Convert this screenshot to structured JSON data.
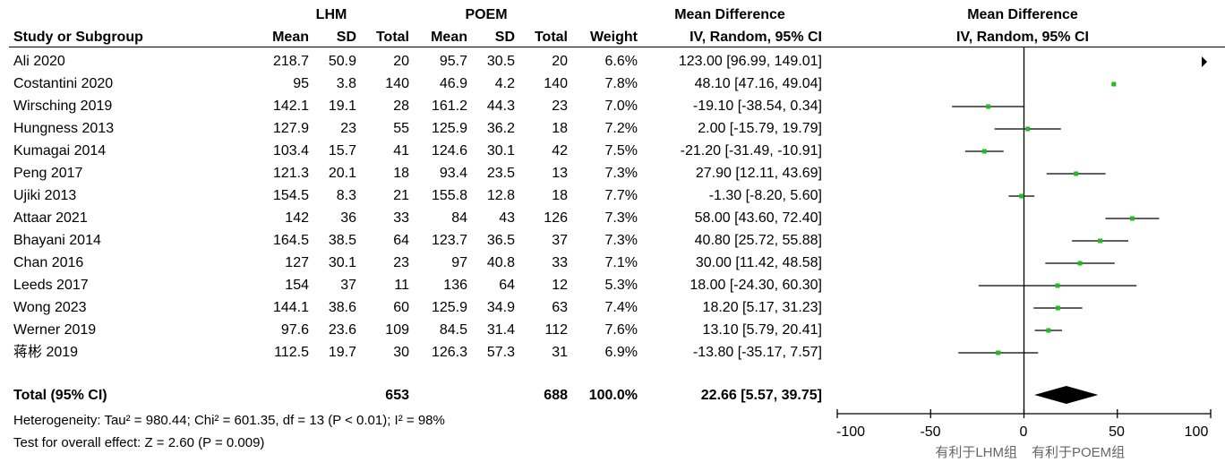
{
  "header": {
    "group1": "LHM",
    "group2": "POEM",
    "effect": "Mean Difference",
    "plot_title": "Mean Difference",
    "col_study": "Study or Subgroup",
    "col_mean1": "Mean",
    "col_sd1": "SD",
    "col_total1": "Total",
    "col_mean2": "Mean",
    "col_sd2": "SD",
    "col_total2": "Total",
    "col_weight": "Weight",
    "col_ci": "IV, Random, 95% CI",
    "plot_subtitle": "IV, Random, 95% CI"
  },
  "studies": [
    {
      "study": "Ali 2020",
      "mean1": "218.7",
      "sd1": "50.9",
      "total1": "20",
      "mean2": "95.7",
      "sd2": "30.5",
      "total2": "20",
      "weight": "6.6%",
      "ci": "123.00 [96.99, 149.01]"
    },
    {
      "study": "Costantini 2020",
      "mean1": "95",
      "sd1": "3.8",
      "total1": "140",
      "mean2": "46.9",
      "sd2": "4.2",
      "total2": "140",
      "weight": "7.8%",
      "ci": "48.10 [47.16, 49.04]"
    },
    {
      "study": "Wirsching 2019",
      "mean1": "142.1",
      "sd1": "19.1",
      "total1": "28",
      "mean2": "161.2",
      "sd2": "44.3",
      "total2": "23",
      "weight": "7.0%",
      "ci": "-19.10 [-38.54, 0.34]"
    },
    {
      "study": "Hungness 2013",
      "mean1": "127.9",
      "sd1": "23",
      "total1": "55",
      "mean2": "125.9",
      "sd2": "36.2",
      "total2": "18",
      "weight": "7.2%",
      "ci": "2.00 [-15.79, 19.79]"
    },
    {
      "study": "Kumagai 2014",
      "mean1": "103.4",
      "sd1": "15.7",
      "total1": "41",
      "mean2": "124.6",
      "sd2": "30.1",
      "total2": "42",
      "weight": "7.5%",
      "ci": "-21.20 [-31.49, -10.91]"
    },
    {
      "study": "Peng 2017",
      "mean1": "121.3",
      "sd1": "20.1",
      "total1": "18",
      "mean2": "93.4",
      "sd2": "23.5",
      "total2": "13",
      "weight": "7.3%",
      "ci": "27.90 [12.11, 43.69]"
    },
    {
      "study": "Ujiki 2013",
      "mean1": "154.5",
      "sd1": "8.3",
      "total1": "21",
      "mean2": "155.8",
      "sd2": "12.8",
      "total2": "18",
      "weight": "7.7%",
      "ci": "-1.30 [-8.20, 5.60]"
    },
    {
      "study": "Attaar 2021",
      "mean1": "142",
      "sd1": "36",
      "total1": "33",
      "mean2": "84",
      "sd2": "43",
      "total2": "126",
      "weight": "7.3%",
      "ci": "58.00 [43.60, 72.40]"
    },
    {
      "study": "Bhayani 2014",
      "mean1": "164.5",
      "sd1": "38.5",
      "total1": "64",
      "mean2": "123.7",
      "sd2": "36.5",
      "total2": "37",
      "weight": "7.3%",
      "ci": "40.80 [25.72, 55.88]"
    },
    {
      "study": "Chan 2016",
      "mean1": "127",
      "sd1": "30.1",
      "total1": "23",
      "mean2": "97",
      "sd2": "40.8",
      "total2": "33",
      "weight": "7.1%",
      "ci": "30.00 [11.42, 48.58]"
    },
    {
      "study": "Leeds 2017",
      "mean1": "154",
      "sd1": "37",
      "total1": "11",
      "mean2": "136",
      "sd2": "64",
      "total2": "12",
      "weight": "5.3%",
      "ci": "18.00 [-24.30, 60.30]"
    },
    {
      "study": "Wong 2023",
      "mean1": "144.1",
      "sd1": "38.6",
      "total1": "60",
      "mean2": "125.9",
      "sd2": "34.9",
      "total2": "63",
      "weight": "7.4%",
      "ci": "18.20 [5.17, 31.23]"
    },
    {
      "study": "Werner 2019",
      "mean1": "97.6",
      "sd1": "23.6",
      "total1": "109",
      "mean2": "84.5",
      "sd2": "31.4",
      "total2": "112",
      "weight": "7.6%",
      "ci": "13.10 [5.79, 20.41]"
    },
    {
      "study": "蒋彬 2019",
      "mean1": "112.5",
      "sd1": "19.7",
      "total1": "30",
      "mean2": "126.3",
      "sd2": "57.3",
      "total2": "31",
      "weight": "6.9%",
      "ci": "-13.80 [-35.17, 7.57]"
    }
  ],
  "total": {
    "label": "Total (95% CI)",
    "total1": "653",
    "total2": "688",
    "weight": "100.0%",
    "ci": "22.66 [5.57, 39.75]"
  },
  "heterogeneity": "Heterogeneity: Tau² = 980.44; Chi² = 601.35, df = 13 (P < 0.01); I² = 98%",
  "overall_effect": "Test for overall effect: Z = 2.60 (P = 0.009)",
  "axis": {
    "ticks": [
      "-100",
      "-50",
      "0",
      "50",
      "100"
    ],
    "left_label": "有利于LHM组",
    "right_label": "有利于POEM组"
  },
  "colors": {
    "point": "#22bb22",
    "line": "#000000",
    "diamond": "#000000"
  },
  "chart_data": {
    "type": "forest",
    "xlim": [
      -100,
      100
    ],
    "ticks": [
      -100,
      -50,
      0,
      50,
      100
    ],
    "series": [
      {
        "study": "Ali 2020",
        "md": 123.0,
        "lo": 96.99,
        "hi": 149.01,
        "weight": 6.6,
        "out_of_range": true
      },
      {
        "study": "Costantini 2020",
        "md": 48.1,
        "lo": 47.16,
        "hi": 49.04,
        "weight": 7.8
      },
      {
        "study": "Wirsching 2019",
        "md": -19.1,
        "lo": -38.54,
        "hi": 0.34,
        "weight": 7.0
      },
      {
        "study": "Hungness 2013",
        "md": 2.0,
        "lo": -15.79,
        "hi": 19.79,
        "weight": 7.2
      },
      {
        "study": "Kumagai 2014",
        "md": -21.2,
        "lo": -31.49,
        "hi": -10.91,
        "weight": 7.5
      },
      {
        "study": "Peng 2017",
        "md": 27.9,
        "lo": 12.11,
        "hi": 43.69,
        "weight": 7.3
      },
      {
        "study": "Ujiki 2013",
        "md": -1.3,
        "lo": -8.2,
        "hi": 5.6,
        "weight": 7.7
      },
      {
        "study": "Attaar 2021",
        "md": 58.0,
        "lo": 43.6,
        "hi": 72.4,
        "weight": 7.3
      },
      {
        "study": "Bhayani 2014",
        "md": 40.8,
        "lo": 25.72,
        "hi": 55.88,
        "weight": 7.3
      },
      {
        "study": "Chan 2016",
        "md": 30.0,
        "lo": 11.42,
        "hi": 48.58,
        "weight": 7.1
      },
      {
        "study": "Leeds 2017",
        "md": 18.0,
        "lo": -24.3,
        "hi": 60.3,
        "weight": 5.3
      },
      {
        "study": "Wong 2023",
        "md": 18.2,
        "lo": 5.17,
        "hi": 31.23,
        "weight": 7.4
      },
      {
        "study": "Werner 2019",
        "md": 13.1,
        "lo": 5.79,
        "hi": 20.41,
        "weight": 7.6
      },
      {
        "study": "蒋彬 2019",
        "md": -13.8,
        "lo": -35.17,
        "hi": 7.57,
        "weight": 6.9
      }
    ],
    "pooled": {
      "md": 22.66,
      "lo": 5.57,
      "hi": 39.75
    }
  }
}
